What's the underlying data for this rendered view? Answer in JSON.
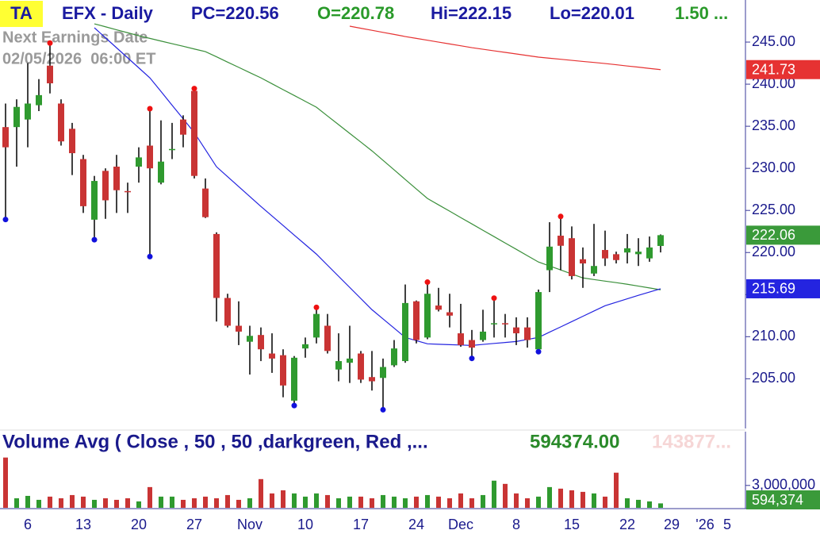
{
  "header": {
    "badge": "TA",
    "symbol": "EFX - Daily",
    "pc": "PC=220.56",
    "open": "O=220.78",
    "high": "Hi=222.15",
    "low": "Lo=220.01",
    "change": "1.50 ...",
    "earnings_label": "Next Earnings Date",
    "earnings_date": "02/05/2026  06:00 ET"
  },
  "chart_data": [
    {
      "type": "candlestick",
      "categories": [
        null,
        null,
        "6",
        null,
        null,
        null,
        null,
        "13",
        null,
        null,
        null,
        null,
        "20",
        null,
        null,
        null,
        null,
        "27",
        null,
        null,
        null,
        null,
        "Nov",
        null,
        null,
        null,
        null,
        "10",
        null,
        null,
        null,
        null,
        "17",
        null,
        null,
        null,
        null,
        "24",
        null,
        null,
        null,
        "Dec",
        null,
        null,
        null,
        null,
        "8",
        null,
        null,
        null,
        null,
        "15",
        null,
        null,
        null,
        null,
        "22",
        null,
        null,
        null,
        "29",
        null,
        null,
        "'26",
        null,
        "5"
      ],
      "open": [
        234.9,
        234.9,
        235.8,
        237.5,
        242.2,
        237.7,
        234.7,
        231.1,
        223.9,
        229.7,
        230.2,
        227.3,
        230.2,
        232.7,
        228.3,
        232.2,
        235.8,
        239.2,
        227.6,
        222.2,
        214.6,
        211.3,
        209.4,
        210.2,
        208,
        207.8,
        202.4,
        208.6,
        209.9,
        211.3,
        206.1,
        206.9,
        208,
        205.2,
        205.1,
        206.6,
        207.1,
        214.2,
        209.9,
        213.7,
        212.9,
        210.4,
        209.6,
        209.6,
        211.5,
        211.6,
        211.1,
        211.1,
        208.5,
        217.9,
        222,
        221.7,
        219.2,
        217.5,
        220.3,
        219.8,
        220,
        219.8,
        219.3,
        220.78,
        null,
        null,
        null,
        null,
        null,
        null
      ],
      "high": [
        237.7,
        238.2,
        242.5,
        240.6,
        244.6,
        238.2,
        235.4,
        231.6,
        229.1,
        230,
        231.6,
        228.3,
        232.5,
        236.8,
        235.7,
        235.4,
        236.3,
        239.2,
        228.8,
        222.4,
        215.1,
        214.2,
        211.3,
        211.1,
        210.4,
        208.5,
        207.7,
        209.9,
        213.2,
        212.7,
        210.4,
        211.3,
        208.3,
        208.3,
        207.4,
        209.6,
        216.2,
        214.3,
        216.2,
        215.8,
        215.1,
        213.9,
        210.8,
        213.2,
        214.3,
        212.7,
        212.3,
        212.3,
        215.6,
        223.6,
        224,
        223.1,
        220.6,
        223.4,
        222.6,
        220.1,
        222.2,
        221.7,
        221.9,
        222.15,
        null,
        null,
        null,
        null,
        null,
        null
      ],
      "low": [
        224.2,
        230.2,
        232.5,
        236.8,
        238.9,
        232.7,
        229.2,
        224.7,
        221.8,
        224,
        224.7,
        224.7,
        228.3,
        219.8,
        228.1,
        231.1,
        232.5,
        228.8,
        224.1,
        211.8,
        211.1,
        209,
        205.5,
        207.1,
        205.7,
        202.8,
        202.1,
        207.5,
        209.2,
        208,
        204.7,
        204.5,
        204.5,
        203.6,
        201.6,
        206.4,
        206.9,
        209.2,
        209.7,
        213,
        211.1,
        208.8,
        207.7,
        209.4,
        209.9,
        209.9,
        209,
        208.7,
        208.5,
        215.3,
        217.9,
        216.8,
        215.8,
        217.2,
        218.4,
        218.7,
        218.7,
        218.4,
        218.9,
        220.01,
        null,
        null,
        null,
        null,
        null,
        null
      ],
      "close": [
        232.5,
        237.3,
        237.7,
        238.7,
        240.1,
        233.2,
        231.8,
        225.5,
        228.5,
        226.2,
        227.4,
        227.2,
        231.3,
        230,
        230.8,
        232.3,
        234,
        229.1,
        224.2,
        214.6,
        211.3,
        210.6,
        210.1,
        208.5,
        207.4,
        204.2,
        207.5,
        209.1,
        212.7,
        208.3,
        207.1,
        207.4,
        204.9,
        204.7,
        206.4,
        208.6,
        214,
        209.6,
        215.1,
        213.2,
        212.5,
        209,
        208.7,
        210.6,
        211.6,
        211.5,
        210.4,
        209.6,
        215.3,
        220.7,
        220.8,
        217.2,
        218.7,
        218.4,
        219.3,
        219.1,
        220.5,
        220.1,
        220.6,
        222.06,
        null,
        null,
        null,
        null,
        null,
        null
      ],
      "up_color": "#2f9a2f",
      "down_color": "#c93434",
      "close_tag_color": "#3a9a3a",
      "high_dot_bars": [
        4,
        13,
        17,
        28,
        38,
        44,
        50
      ],
      "high_dot_color": "#ee1111",
      "low_dot_bars": [
        0,
        8,
        13,
        26,
        34,
        42,
        48
      ],
      "low_dot_color": "#1111dd",
      "lines": [
        {
          "color": "#e63232",
          "values": [
            null,
            null,
            null,
            null,
            null,
            null,
            null,
            null,
            null,
            null,
            null,
            null,
            null,
            null,
            null,
            null,
            null,
            null,
            null,
            null,
            null,
            null,
            null,
            null,
            null,
            null,
            null,
            null,
            null,
            null,
            null,
            246.89,
            246.64,
            246.4,
            246.15,
            245.91,
            245.66,
            245.44,
            245.22,
            245.0,
            244.78,
            244.56,
            244.34,
            244.15,
            243.96,
            243.78,
            243.59,
            243.4,
            243.21,
            243.08,
            242.96,
            242.83,
            242.7,
            242.58,
            242.45,
            242.31,
            242.16,
            242.02,
            241.87,
            241.73,
            null,
            null,
            null,
            null,
            null,
            null
          ],
          "tag": true
        },
        {
          "color": "#3a8f3a",
          "values": [
            null,
            null,
            null,
            null,
            null,
            null,
            null,
            null,
            247.17,
            246.82,
            246.46,
            246.11,
            245.75,
            245.44,
            245.12,
            244.81,
            244.5,
            244.18,
            243.87,
            243.25,
            242.62,
            242.0,
            241.37,
            240.75,
            240.05,
            239.35,
            238.66,
            237.96,
            237.26,
            236.22,
            235.19,
            234.15,
            233.12,
            232.08,
            230.95,
            229.82,
            228.68,
            227.55,
            226.42,
            225.66,
            224.91,
            224.15,
            223.4,
            222.64,
            221.89,
            221.13,
            220.38,
            219.62,
            218.87,
            218.4,
            217.93,
            217.45,
            216.98,
            216.79,
            216.6,
            216.42,
            216.23,
            216.01,
            215.79,
            215.57,
            null,
            null,
            null,
            null,
            null,
            null
          ],
          "tag": false
        },
        {
          "color": "#2424e0",
          "values": [
            null,
            null,
            null,
            null,
            null,
            null,
            null,
            null,
            246.7,
            245.51,
            244.32,
            243.13,
            241.94,
            240.75,
            239.13,
            237.5,
            235.88,
            234.25,
            232.22,
            230.19,
            229.01,
            227.83,
            226.65,
            225.47,
            224.34,
            223.21,
            222.07,
            220.94,
            219.81,
            218.49,
            217.17,
            215.85,
            214.53,
            213.21,
            212.11,
            211.01,
            209.91,
            209.53,
            209.15,
            209.1,
            209.05,
            209.01,
            208.96,
            209.08,
            209.2,
            209.31,
            209.43,
            209.67,
            209.91,
            210.54,
            211.16,
            211.79,
            212.42,
            213.05,
            213.68,
            214.09,
            214.5,
            214.91,
            215.3,
            215.69,
            null,
            null,
            null,
            null,
            null,
            null
          ],
          "tag": true
        }
      ],
      "ylim": [
        199,
        250
      ],
      "yticks": [
        {
          "value": 205,
          "label": "205.00"
        },
        {
          "value": 210,
          "label": "210.00"
        },
        {
          "value": 215,
          "label": "215.00"
        },
        {
          "value": 220,
          "label": "220.00"
        },
        {
          "value": 225,
          "label": "225.00"
        },
        {
          "value": 230,
          "label": "230.00"
        },
        {
          "value": 235,
          "label": "235.00"
        },
        {
          "value": 240,
          "label": "240.00"
        },
        {
          "value": 245,
          "label": "245.00"
        }
      ]
    },
    {
      "type": "bar",
      "legend_text": "Volume Avg ( Close , 50 , 50 ,darkgreen, Red ,...",
      "legend_value": "594374.00",
      "legend_value_2": "143877...",
      "values": [
        6740000,
        1280000,
        1600000,
        1070000,
        1500000,
        1280000,
        1710000,
        1500000,
        1070000,
        1280000,
        1070000,
        1280000,
        860000,
        2780000,
        1500000,
        1500000,
        1070000,
        1280000,
        1500000,
        1280000,
        1710000,
        1070000,
        1280000,
        3850000,
        1930000,
        2350000,
        1930000,
        1500000,
        1930000,
        1710000,
        1280000,
        1500000,
        1500000,
        1280000,
        1710000,
        1500000,
        1280000,
        1500000,
        1710000,
        1500000,
        1280000,
        1930000,
        1280000,
        1710000,
        3640000,
        3210000,
        1930000,
        1280000,
        1500000,
        2780000,
        2570000,
        2350000,
        2140000,
        1930000,
        1500000,
        4710000,
        1280000,
        1070000,
        860000,
        594374,
        null,
        null,
        null,
        null,
        null,
        null
      ],
      "last_value_label": "594,374",
      "tag_color": "#3a9a3a",
      "ylim": [
        0,
        10000000
      ],
      "yticks": [
        {
          "value": 3000000,
          "label": "3,000,000"
        }
      ]
    }
  ]
}
